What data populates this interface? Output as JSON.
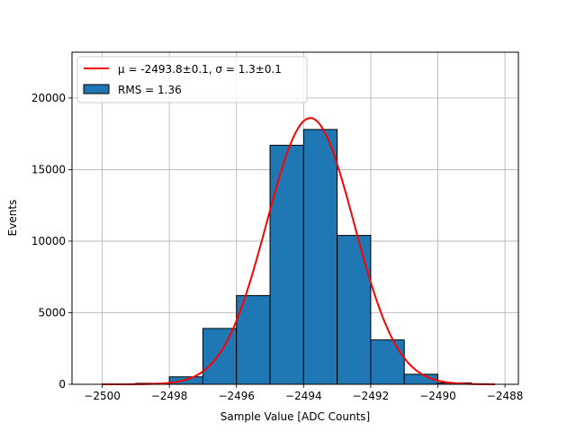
{
  "chart_data": {
    "type": "bar",
    "title": "",
    "xlabel": "Sample Value [ADC Counts]",
    "ylabel": "Events",
    "xlim": [
      -2500.9,
      -2487.6
    ],
    "ylim": [
      0,
      23200
    ],
    "grid": true,
    "legend_position": "top-left",
    "x_ticks": [
      -2500,
      -2498,
      -2496,
      -2494,
      -2492,
      -2490,
      -2488
    ],
    "x_tick_labels": [
      "−2500",
      "−2498",
      "−2496",
      "−2494",
      "−2492",
      "−2490",
      "−2488"
    ],
    "y_ticks": [
      0,
      5000,
      10000,
      15000,
      20000
    ],
    "y_tick_labels": [
      "0",
      "5000",
      "10000",
      "15000",
      "20000"
    ],
    "histogram": {
      "name": "RMS = 1.36",
      "color": "#1f77b4",
      "edge_color": "#000000",
      "bin_edges": [
        -2500.0,
        -2499.0,
        -2498.0,
        -2497.0,
        -2496.0,
        -2495.0,
        -2494.0,
        -2493.0,
        -2492.0,
        -2491.0,
        -2490.0,
        -2489.0
      ],
      "counts": [
        30,
        70,
        520,
        3900,
        6200,
        16700,
        17800,
        10400,
        3100,
        700,
        100
      ]
    },
    "fit": {
      "name": "μ = -2493.8±0.1, σ = 1.3±0.1",
      "color": "#ff0000",
      "mu": -2493.8,
      "sigma": 1.3,
      "amplitude": 18600,
      "x_range": [
        -2500.0,
        -2488.3
      ]
    }
  }
}
